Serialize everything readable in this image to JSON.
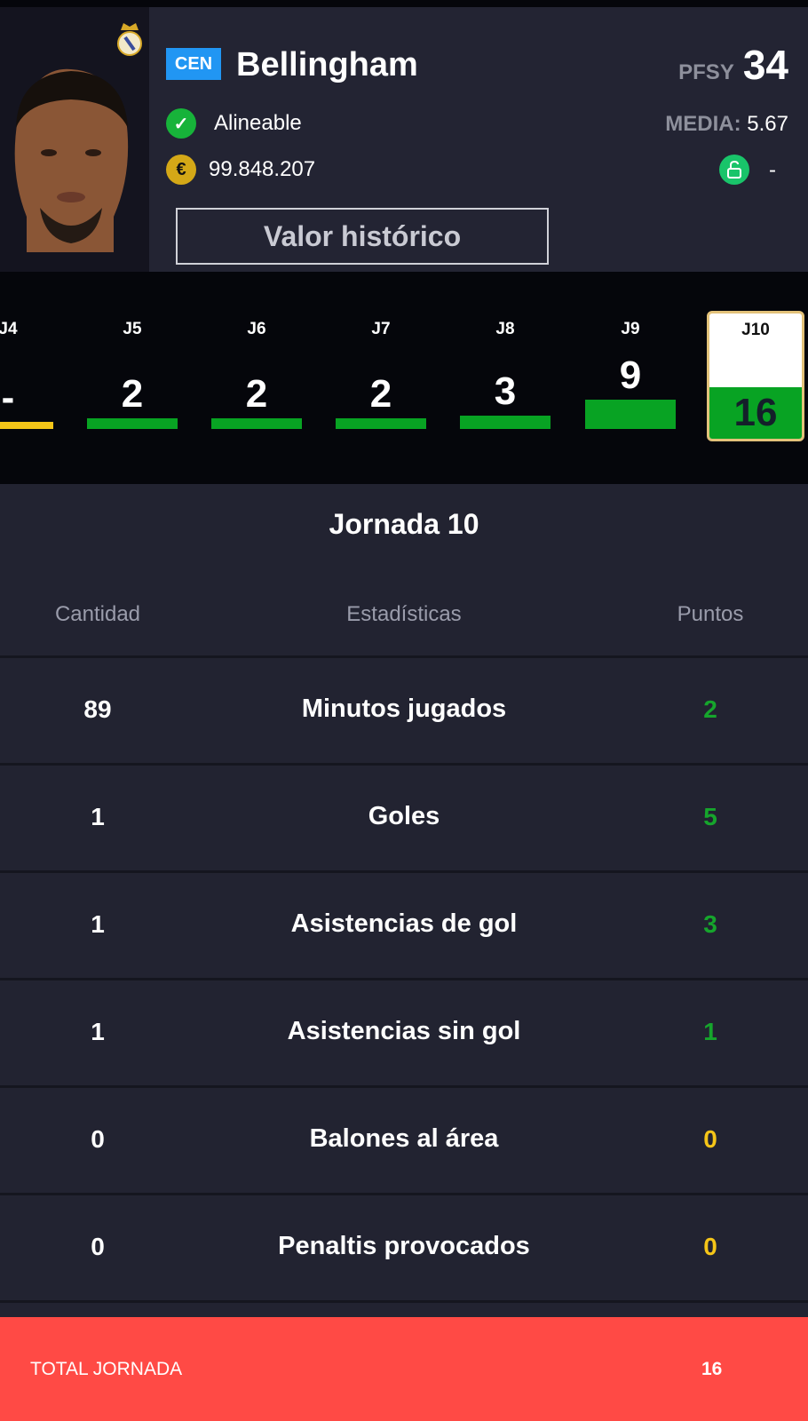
{
  "player": {
    "position": "CEN",
    "name": "Bellingham",
    "pfsy_label": "PFSY",
    "pfsy_value": "34",
    "status": "Alineable",
    "value": "99.848.207",
    "media_label": "MEDIA:",
    "media_value": "5.67",
    "clause": "-",
    "history_button": "Valor histórico",
    "currency_symbol": "€"
  },
  "gameweeks": [
    {
      "label": "J4",
      "points": "-",
      "bar_color": "#f5c518"
    },
    {
      "label": "J5",
      "points": "2",
      "bar_color": "#08a323"
    },
    {
      "label": "J6",
      "points": "2",
      "bar_color": "#08a323"
    },
    {
      "label": "J7",
      "points": "2",
      "bar_color": "#08a323"
    },
    {
      "label": "J8",
      "points": "3",
      "bar_color": "#08a323"
    },
    {
      "label": "J9",
      "points": "9",
      "bar_color": "#08a323"
    },
    {
      "label": "J10",
      "points": "16",
      "bar_color": "#08a323",
      "selected": true
    }
  ],
  "detail": {
    "title": "Jornada 10",
    "columns": [
      "Cantidad",
      "Estadísticas",
      "Puntos"
    ],
    "rows": [
      {
        "qty": "89",
        "stat": "Minutos jugados",
        "points": "2",
        "color": "#16a52c"
      },
      {
        "qty": "1",
        "stat": "Goles",
        "points": "5",
        "color": "#16a52c"
      },
      {
        "qty": "1",
        "stat": "Asistencias de gol",
        "points": "3",
        "color": "#16a52c"
      },
      {
        "qty": "1",
        "stat": "Asistencias sin gol",
        "points": "1",
        "color": "#16a52c"
      },
      {
        "qty": "0",
        "stat": "Balones al área",
        "points": "0",
        "color": "#f5c518"
      },
      {
        "qty": "0",
        "stat": "Penaltis provocados",
        "points": "0",
        "color": "#f5c518"
      }
    ],
    "total_label": "TOTAL JORNADA",
    "total_value": "16"
  }
}
